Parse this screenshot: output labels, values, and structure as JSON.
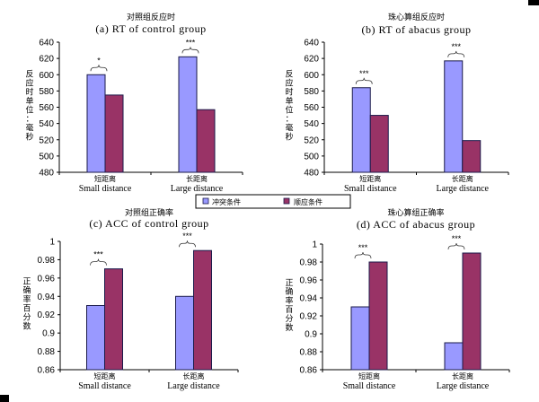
{
  "legend": {
    "items": [
      {
        "label": "冲突条件",
        "color": "#9999FF"
      },
      {
        "label": "顺应条件",
        "color": "#993366"
      }
    ]
  },
  "chart_data": [
    {
      "type": "bar",
      "title_cn": "对照组反应时",
      "title": "(a) RT of control group",
      "ylabel": "反应时单位：毫秒",
      "categories_cn": [
        "短距离",
        "长距离"
      ],
      "categories": [
        "Small distance",
        "Large distance"
      ],
      "ylim": [
        480,
        640
      ],
      "yticks": [
        480,
        500,
        520,
        540,
        560,
        580,
        600,
        620,
        640
      ],
      "ytick_labels": [
        "480",
        "500",
        "520",
        "540",
        "560",
        "580",
        "600",
        "620",
        "640"
      ],
      "series": [
        {
          "name": "冲突条件",
          "values": [
            600,
            622
          ]
        },
        {
          "name": "顺应条件",
          "values": [
            575,
            557
          ]
        }
      ],
      "significance": [
        "*",
        "***"
      ]
    },
    {
      "type": "bar",
      "title_cn": "珠心算组反应时",
      "title": "(b) RT of abacus group",
      "ylabel": "反应时单位：毫秒",
      "categories_cn": [
        "短距离",
        "长距离"
      ],
      "categories": [
        "Small distance",
        "Large distance"
      ],
      "ylim": [
        480,
        640
      ],
      "yticks": [
        480,
        500,
        520,
        540,
        560,
        580,
        600,
        620,
        640
      ],
      "ytick_labels": [
        "480",
        "500",
        "520",
        "540",
        "560",
        "580",
        "600",
        "620",
        "640"
      ],
      "series": [
        {
          "name": "冲突条件",
          "values": [
            584,
            617
          ]
        },
        {
          "name": "顺应条件",
          "values": [
            550,
            519
          ]
        }
      ],
      "significance": [
        "***",
        "***"
      ]
    },
    {
      "type": "bar",
      "title_cn": "对照组正确率",
      "title": "(c) ACC of control group",
      "ylabel": "正确率百分数",
      "categories_cn": [
        "短距离",
        "长距离"
      ],
      "categories": [
        "Small distance",
        "Large distance"
      ],
      "ylim": [
        0.86,
        1.0
      ],
      "yticks": [
        0.86,
        0.88,
        0.9,
        0.92,
        0.94,
        0.96,
        0.98,
        1.0
      ],
      "ytick_labels": [
        "0.86",
        "0.88",
        "0.9",
        "0.92",
        "0.94",
        "0.96",
        "0.98",
        "1"
      ],
      "series": [
        {
          "name": "冲突条件",
          "values": [
            0.93,
            0.94
          ]
        },
        {
          "name": "顺应条件",
          "values": [
            0.97,
            0.99
          ]
        }
      ],
      "significance": [
        "***",
        "***"
      ]
    },
    {
      "type": "bar",
      "title_cn": "珠心算组正确率",
      "title": "(d) ACC of abacus group",
      "ylabel": "正确率百分数",
      "categories_cn": [
        "短距离",
        "长距离"
      ],
      "categories": [
        "Small distance",
        "Large distance"
      ],
      "ylim": [
        0.86,
        1.0
      ],
      "yticks": [
        0.86,
        0.88,
        0.9,
        0.92,
        0.94,
        0.96,
        0.98,
        1.0
      ],
      "ytick_labels": [
        "0.86",
        "0.88",
        "0.9",
        "0.92",
        "0.94",
        "0.96",
        "0.98",
        "1"
      ],
      "series": [
        {
          "name": "冲突条件",
          "values": [
            0.93,
            0.89
          ]
        },
        {
          "name": "顺应条件",
          "values": [
            0.98,
            0.99
          ]
        }
      ],
      "significance": [
        "***",
        "***"
      ]
    }
  ]
}
